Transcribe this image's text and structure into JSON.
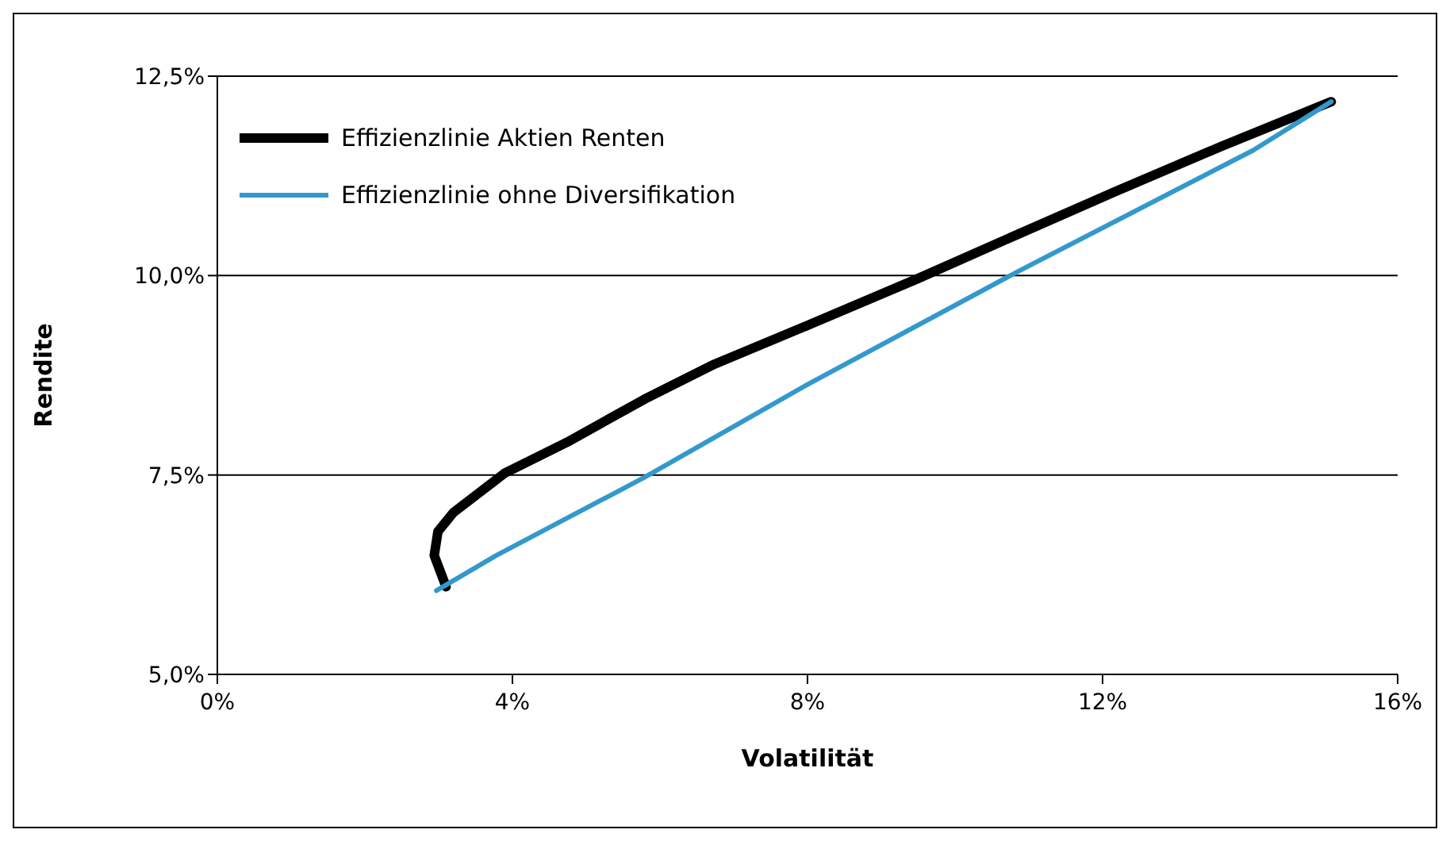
{
  "chart_data": {
    "type": "line",
    "xlabel": "Volatilität",
    "ylabel": "Rendite",
    "xlim": [
      0,
      16
    ],
    "xticks": [
      {
        "value": 0,
        "label": "0%"
      },
      {
        "value": 4,
        "label": "4%"
      },
      {
        "value": 8,
        "label": "8%"
      },
      {
        "value": 12,
        "label": "12%"
      },
      {
        "value": 16,
        "label": "16%"
      }
    ],
    "ylim": [
      5,
      12.5
    ],
    "yticks": [
      {
        "value": 5,
        "label": "5,0%"
      },
      {
        "value": 7.5,
        "label": "7,5%"
      },
      {
        "value": 10,
        "label": "10,0%"
      },
      {
        "value": 12.5,
        "label": "12,5%"
      }
    ],
    "grid": "y",
    "legend": "top left",
    "marker": "none",
    "line_style": "solid",
    "series": [
      {
        "name": "Effizienzlinie Aktien Renten",
        "color": "#000000",
        "x": [
          3.1,
          2.94,
          2.99,
          3.2,
          3.89,
          4.74,
          5.79,
          6.74,
          8.01,
          9.49,
          10.44,
          12.14,
          13.61,
          15.1
        ],
        "values": [
          6.1,
          6.49,
          6.79,
          7.03,
          7.52,
          7.91,
          8.45,
          8.89,
          9.38,
          9.96,
          10.35,
          11.04,
          11.62,
          12.18
        ]
      },
      {
        "name": "Effizienzlinie ohne Diversifikation",
        "color": "#3399cc",
        "x": [
          2.97,
          3.78,
          5.79,
          8.01,
          10.87,
          14.04,
          15.1
        ],
        "values": [
          6.05,
          6.49,
          7.47,
          8.64,
          10.06,
          11.57,
          12.18
        ]
      }
    ]
  }
}
